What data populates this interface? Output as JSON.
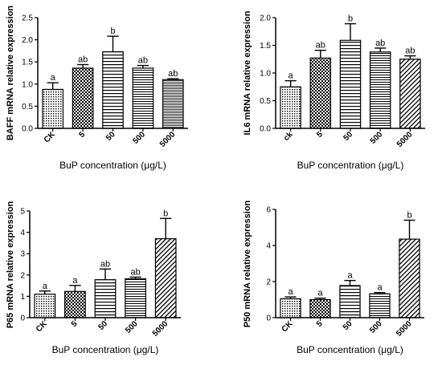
{
  "chart_data": [
    {
      "type": "bar",
      "ylabel": "BAFF mRNA relative expression",
      "xlabel": "BuP concentration (μg/L)",
      "categories": [
        "CK",
        "5",
        "50",
        "500",
        "5000"
      ],
      "values": [
        0.88,
        1.36,
        1.73,
        1.36,
        1.1
      ],
      "errors": [
        0.15,
        0.08,
        0.35,
        0.06,
        0.02
      ],
      "significance": [
        "a",
        "ab",
        "b",
        "ab",
        "ab"
      ],
      "ylim": [
        0,
        2.5
      ],
      "yticks": [
        "0.0",
        "0.5",
        "1.0",
        "1.5",
        "2.0",
        "2.5"
      ],
      "patterns": [
        "dots",
        "check",
        "hlines",
        "hlines-dense",
        "hlines-fine"
      ]
    },
    {
      "type": "bar",
      "ylabel": "IL6 mRNA relative expression",
      "xlabel": "BuP concentration (μg/L)",
      "categories": [
        "ck",
        "5",
        "50",
        "500",
        "5000"
      ],
      "values": [
        0.75,
        1.27,
        1.59,
        1.38,
        1.25
      ],
      "errors": [
        0.11,
        0.14,
        0.3,
        0.07,
        0.06
      ],
      "significance": [
        "a",
        "ab",
        "b",
        "ab",
        "ab"
      ],
      "ylim": [
        0,
        2.0
      ],
      "yticks": [
        "0.0",
        "0.5",
        "1.0",
        "1.5",
        "2.0"
      ],
      "patterns": [
        "dots",
        "check",
        "hlines",
        "hlines-dense",
        "diag"
      ]
    },
    {
      "type": "bar",
      "ylabel": "P65 mRNA relative expression",
      "xlabel": "BuP concentration (μg/L)",
      "categories": [
        "CK",
        "5",
        "50",
        "500",
        "5000"
      ],
      "values": [
        1.1,
        1.23,
        1.78,
        1.82,
        3.7
      ],
      "errors": [
        0.15,
        0.28,
        0.5,
        0.08,
        0.95
      ],
      "significance": [
        "a",
        "a",
        "ab",
        "ab",
        "b"
      ],
      "ylim": [
        0,
        5
      ],
      "yticks": [
        "0",
        "1",
        "2",
        "3",
        "4",
        "5"
      ],
      "patterns": [
        "dots",
        "check",
        "hlines",
        "hlines-dense",
        "diag"
      ]
    },
    {
      "type": "bar",
      "ylabel": "P50 mRNA relative expression",
      "xlabel": "BuP concentration (μg/L)",
      "categories": [
        "CK",
        "5",
        "50",
        "500",
        "5000"
      ],
      "values": [
        1.05,
        1.0,
        1.78,
        1.32,
        4.35
      ],
      "errors": [
        0.1,
        0.08,
        0.28,
        0.07,
        1.05
      ],
      "significance": [
        "a",
        "a",
        "a",
        "a",
        "b"
      ],
      "ylim": [
        0,
        6
      ],
      "yticks": [
        "0",
        "2",
        "4",
        "6"
      ],
      "patterns": [
        "dots",
        "check",
        "hlines",
        "hlines-dense",
        "diag"
      ]
    }
  ]
}
